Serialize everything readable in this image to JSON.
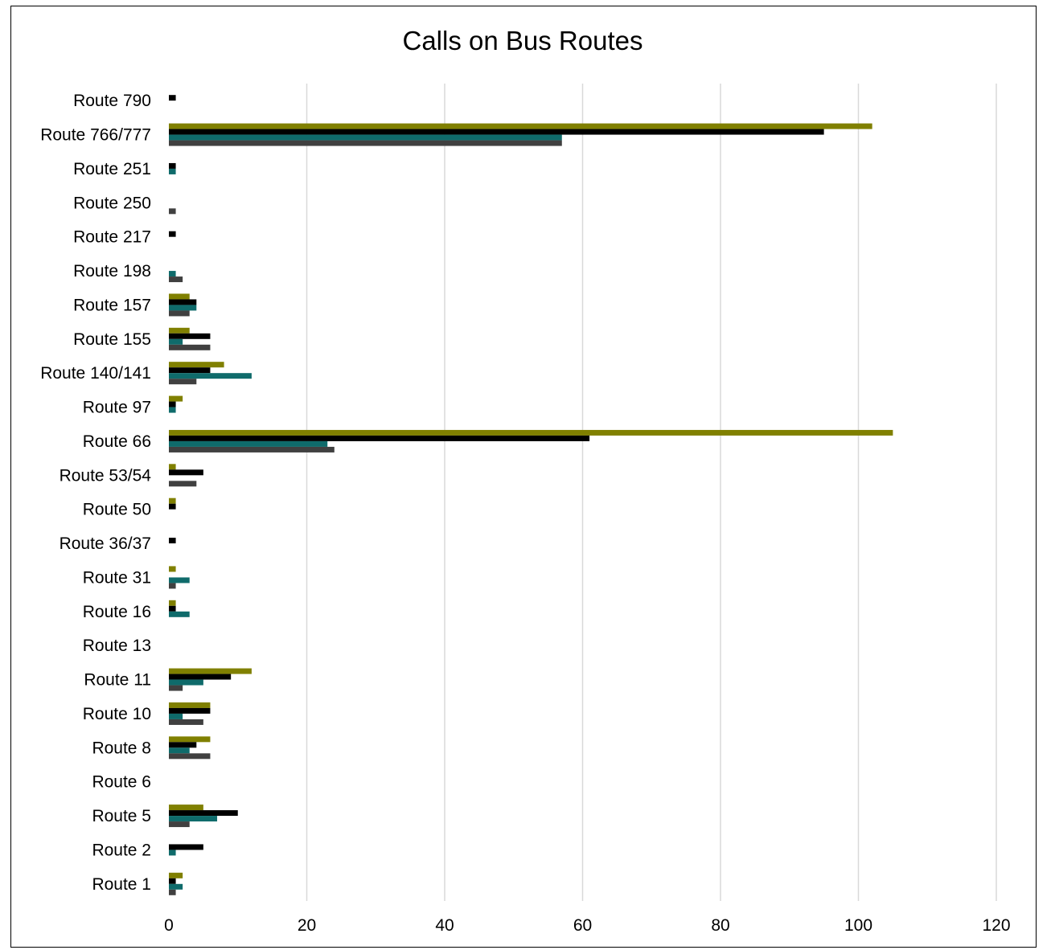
{
  "chart_data": {
    "type": "bar",
    "orientation": "horizontal",
    "title": "Calls on Bus Routes",
    "xlabel": "",
    "ylabel": "",
    "xlim": [
      0,
      120
    ],
    "x_ticks": [
      "0",
      "20",
      "40",
      "60",
      "80",
      "100",
      "120"
    ],
    "grid": true,
    "legend": "none",
    "categories": [
      "Route 790",
      "Route 766/777",
      "Route 251",
      "Route 250",
      "Route 217",
      "Route 198",
      "Route 157",
      "Route 155",
      "Route 140/141",
      "Route 97",
      "Route 66",
      "Route 53/54",
      "Route 50",
      "Route 36/37",
      "Route 31",
      "Route 16",
      "Route 13",
      "Route 11",
      "Route 10",
      "Route 8",
      "Route 6",
      "Route 5",
      "Route 2",
      "Route 1"
    ],
    "series": [
      {
        "color": "#808000",
        "values": [
          0,
          102,
          0,
          0,
          0,
          0,
          3,
          3,
          8,
          2,
          105,
          1,
          1,
          0,
          1,
          1,
          0,
          12,
          6,
          6,
          0,
          5,
          0,
          2
        ]
      },
      {
        "color": "#000000",
        "values": [
          1,
          95,
          1,
          0,
          1,
          0,
          4,
          6,
          6,
          1,
          61,
          5,
          1,
          1,
          0,
          1,
          0,
          9,
          6,
          4,
          0,
          10,
          5,
          1
        ]
      },
      {
        "color": "#0f6b6b",
        "values": [
          0,
          57,
          1,
          0,
          0,
          1,
          4,
          2,
          12,
          1,
          23,
          0,
          0,
          0,
          3,
          3,
          0,
          5,
          2,
          3,
          0,
          7,
          1,
          2
        ]
      },
      {
        "color": "#404040",
        "values": [
          0,
          57,
          0,
          1,
          0,
          2,
          3,
          6,
          4,
          0,
          24,
          4,
          0,
          0,
          1,
          0,
          0,
          2,
          5,
          6,
          0,
          3,
          0,
          1
        ]
      }
    ]
  }
}
